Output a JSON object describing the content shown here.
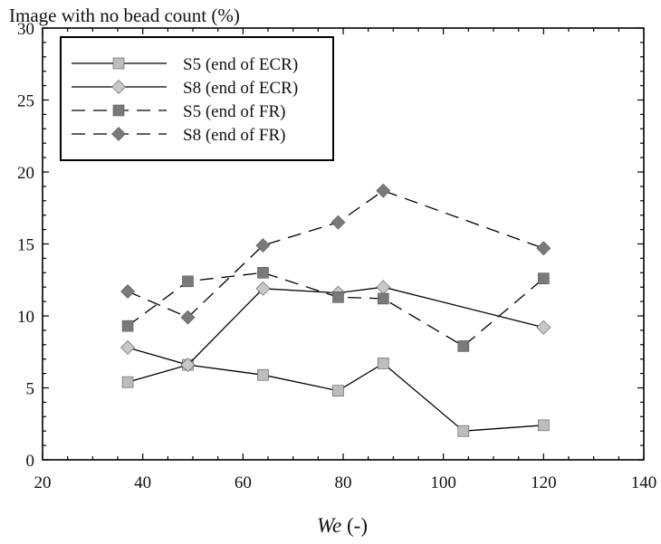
{
  "chart_data": {
    "type": "line",
    "ylabel": "Image with no bead count (%)",
    "xlabel_main": "We",
    "xlabel_unit": " (-)",
    "xlim": [
      20,
      140
    ],
    "ylim": [
      0,
      30
    ],
    "xticks": [
      20,
      40,
      60,
      80,
      100,
      120,
      140
    ],
    "yticks": [
      0,
      5,
      10,
      15,
      20,
      25,
      30
    ],
    "grid": false,
    "legend_position": "top-left",
    "series": [
      {
        "name": "S5 (end of ECR)",
        "marker": "square",
        "color": "#bdbdbd",
        "line_style": "solid",
        "x": [
          37,
          49,
          64,
          79,
          88,
          104,
          120
        ],
        "y": [
          5.4,
          6.6,
          5.9,
          4.8,
          6.7,
          2.0,
          2.4
        ]
      },
      {
        "name": "S8 (end of ECR)",
        "marker": "diamond",
        "color": "#c8c8c8",
        "line_style": "solid",
        "x": [
          37,
          49,
          64,
          79,
          88,
          120
        ],
        "y": [
          7.8,
          6.6,
          11.9,
          11.6,
          12.0,
          9.2
        ]
      },
      {
        "name": "S5 (end of FR)",
        "marker": "square",
        "color": "#7a7a7a",
        "line_style": "dashed",
        "x": [
          37,
          49,
          64,
          79,
          88,
          104,
          120
        ],
        "y": [
          9.3,
          12.4,
          13.0,
          11.3,
          11.2,
          7.9,
          12.6
        ]
      },
      {
        "name": "S8 (end of FR)",
        "marker": "diamond",
        "color": "#7a7a7a",
        "line_style": "dashed",
        "x": [
          37,
          49,
          64,
          79,
          88,
          120
        ],
        "y": [
          11.7,
          9.9,
          14.9,
          16.5,
          18.7,
          14.7
        ]
      }
    ]
  }
}
